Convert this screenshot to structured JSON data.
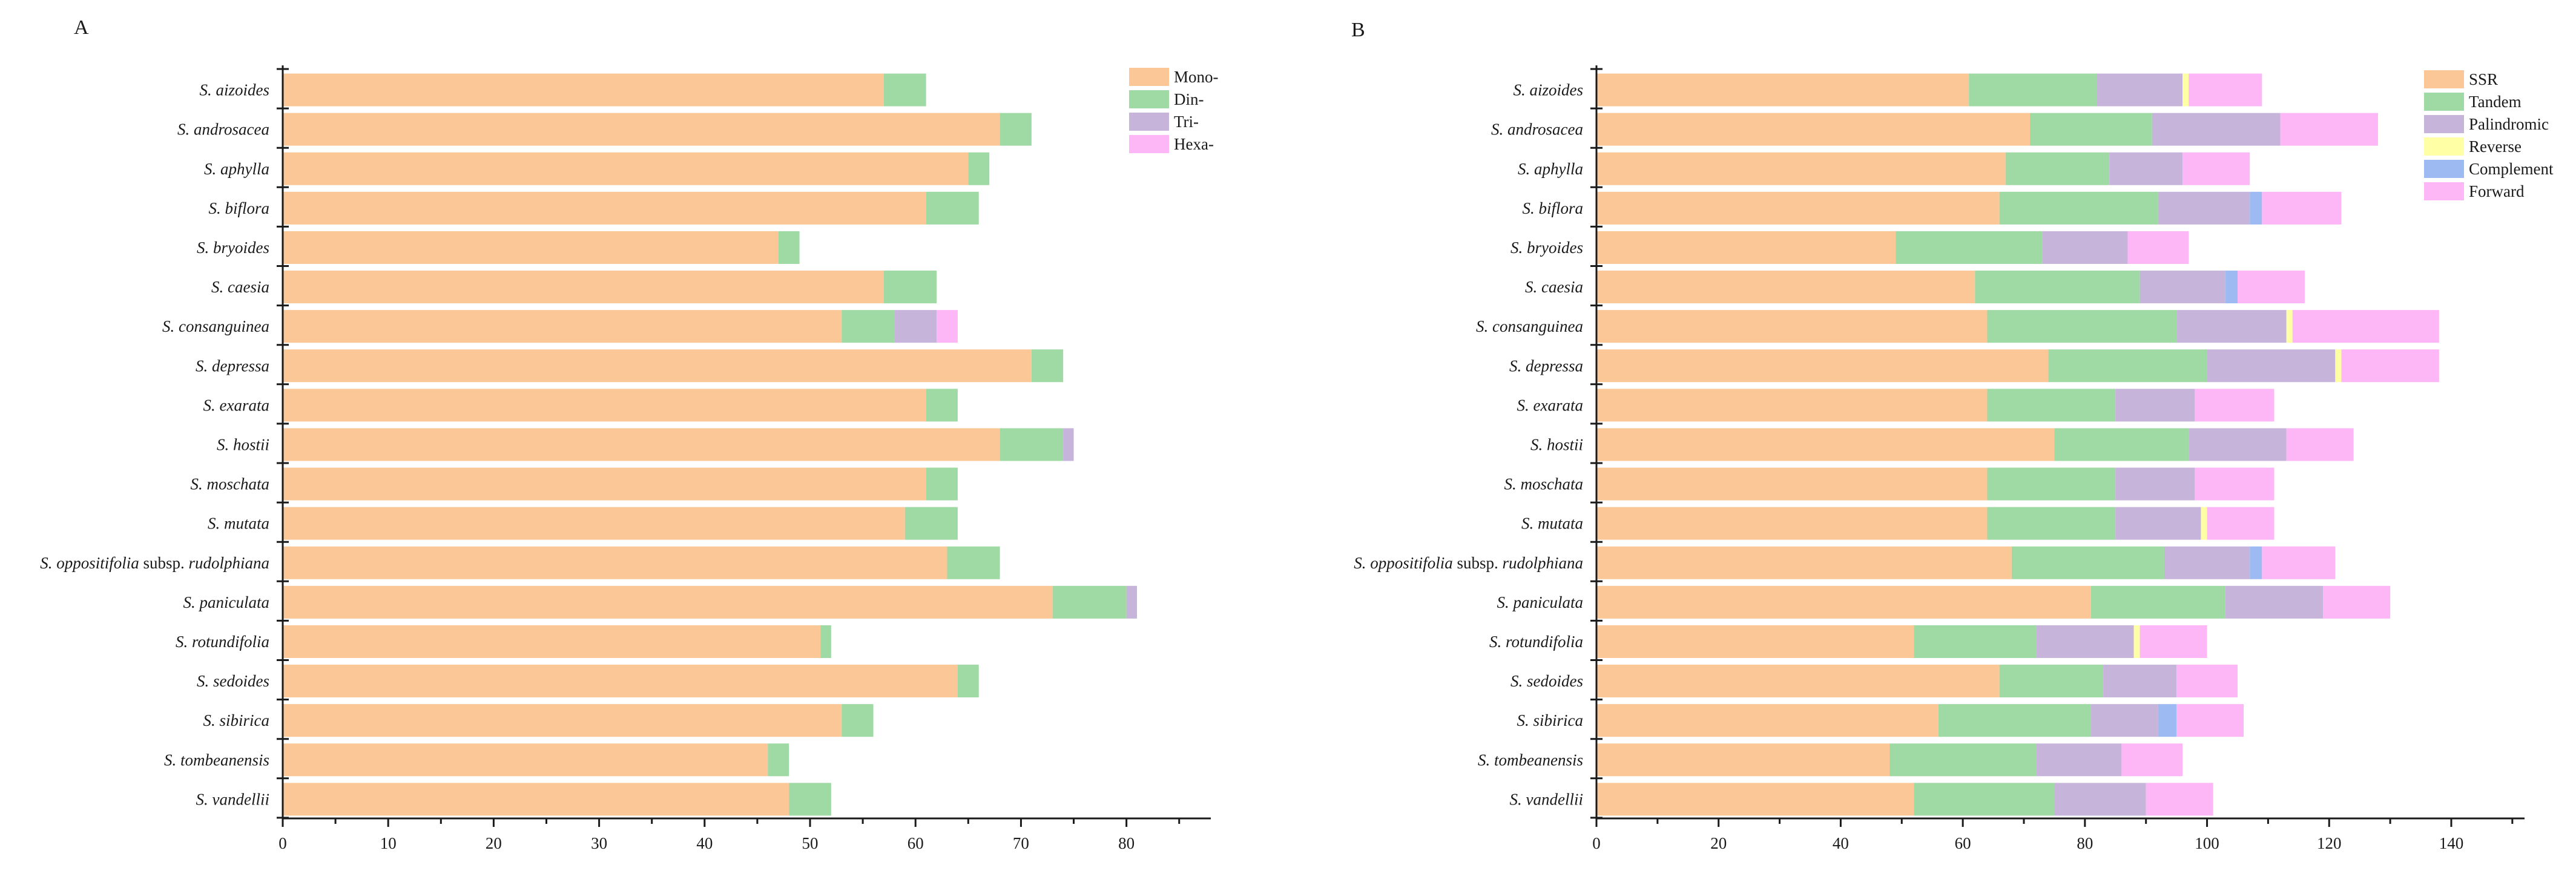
{
  "chart_data": [
    {
      "panel": "A",
      "type": "bar",
      "orientation": "horizontal",
      "stacked": true,
      "categories": [
        "S. aizoides",
        "S. androsacea",
        "S. aphylla",
        "S. biflora",
        "S. bryoides",
        "S. caesia",
        "S. consanguinea",
        "S. depressa",
        "S. exarata",
        "S. hostii",
        "S. moschata",
        "S. mutata",
        "S. oppositifolia subsp. rudolphiana",
        "S. paniculata",
        "S. rotundifolia",
        "S. sedoides",
        "S. sibirica",
        "S. tombeanensis",
        "S. vandellii"
      ],
      "series": [
        {
          "name": "Mono-",
          "color": "#FBC797",
          "values": [
            57,
            68,
            65,
            61,
            47,
            57,
            53,
            71,
            61,
            68,
            61,
            59,
            63,
            73,
            51,
            64,
            53,
            46,
            48
          ]
        },
        {
          "name": "Din-",
          "color": "#9FD9A3",
          "values": [
            4,
            3,
            2,
            5,
            2,
            5,
            5,
            3,
            3,
            6,
            3,
            5,
            5,
            7,
            1,
            2,
            3,
            2,
            4
          ]
        },
        {
          "name": "Tri-",
          "color": "#C6B4DB",
          "values": [
            0,
            0,
            0,
            0,
            0,
            0,
            4,
            0,
            0,
            1,
            0,
            0,
            0,
            1,
            0,
            0,
            0,
            0,
            0
          ]
        },
        {
          "name": "Hexa-",
          "color": "#FDB6F6",
          "values": [
            0,
            0,
            0,
            0,
            0,
            0,
            2,
            0,
            0,
            0,
            0,
            0,
            0,
            0,
            0,
            0,
            0,
            0,
            0
          ]
        }
      ],
      "xlim": [
        0,
        88
      ],
      "xticks": [
        0,
        10,
        20,
        30,
        40,
        50,
        60,
        70,
        80
      ],
      "legend": "top-right",
      "grid": false
    },
    {
      "panel": "B",
      "type": "bar",
      "orientation": "horizontal",
      "stacked": true,
      "categories": [
        "S. aizoides",
        "S. androsacea",
        "S. aphylla",
        "S. biflora",
        "S. bryoides",
        "S. caesia",
        "S. consanguinea",
        "S. depressa",
        "S. exarata",
        "S. hostii",
        "S. moschata",
        "S. mutata",
        "S. oppositifolia subsp. rudolphiana",
        "S. paniculata",
        "S. rotundifolia",
        "S. sedoides",
        "S. sibirica",
        "S. tombeanensis",
        "S. vandellii"
      ],
      "series": [
        {
          "name": "SSR",
          "color": "#FBC797",
          "values": [
            61,
            71,
            67,
            66,
            49,
            62,
            64,
            74,
            64,
            75,
            64,
            64,
            68,
            81,
            52,
            66,
            56,
            48,
            52
          ]
        },
        {
          "name": "Tandem",
          "color": "#9FD9A3",
          "values": [
            21,
            20,
            17,
            26,
            24,
            27,
            31,
            26,
            21,
            22,
            21,
            21,
            25,
            22,
            20,
            17,
            25,
            24,
            23
          ]
        },
        {
          "name": "Palindromic",
          "color": "#C6B4DB",
          "values": [
            14,
            21,
            12,
            15,
            14,
            14,
            18,
            21,
            13,
            16,
            13,
            14,
            14,
            16,
            16,
            12,
            11,
            14,
            15
          ]
        },
        {
          "name": "Reverse",
          "color": "#FFFFA6",
          "values": [
            1,
            0,
            0,
            0,
            0,
            0,
            1,
            1,
            0,
            0,
            0,
            1,
            0,
            0,
            1,
            0,
            0,
            0,
            0
          ]
        },
        {
          "name": "Complement",
          "color": "#9EBAF2",
          "values": [
            0,
            0,
            0,
            2,
            0,
            2,
            0,
            0,
            0,
            0,
            0,
            0,
            2,
            0,
            0,
            0,
            3,
            0,
            0
          ]
        },
        {
          "name": "Forward",
          "color": "#FDB6F6",
          "values": [
            12,
            16,
            11,
            13,
            10,
            11,
            24,
            16,
            13,
            11,
            13,
            11,
            12,
            11,
            11,
            10,
            11,
            10,
            11
          ]
        }
      ],
      "xlim": [
        0,
        152
      ],
      "xticks": [
        0,
        20,
        40,
        60,
        80,
        100,
        120,
        140
      ],
      "legend": "top-right",
      "grid": false
    }
  ]
}
